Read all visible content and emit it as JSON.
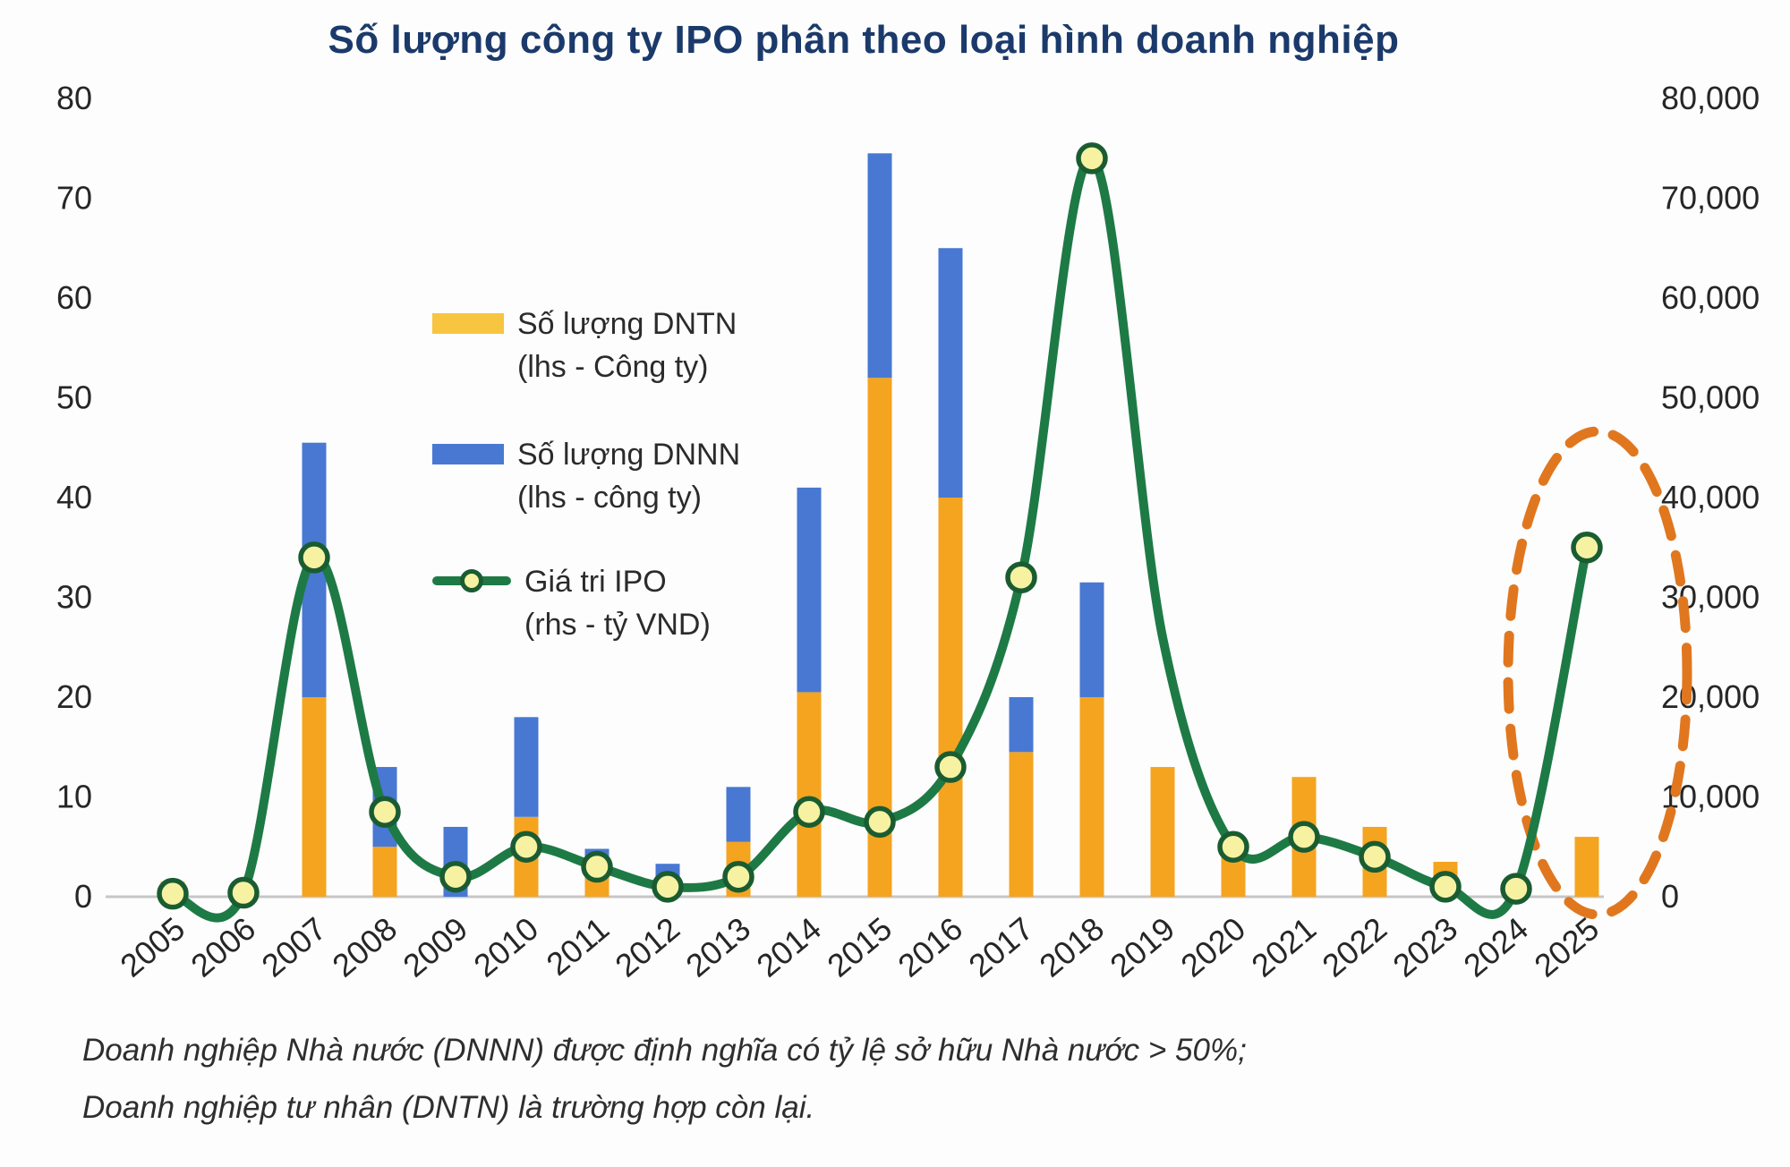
{
  "title": "Số lượng công ty IPO phân theo loại hình doanh nghiệp",
  "legend": {
    "items": [
      {
        "label": "Số lượng DNTN",
        "sublabel": "(lhs - Công ty)",
        "swatch_color": "#F7C53F",
        "marker": "bar"
      },
      {
        "label": "Số lượng DNNN",
        "sublabel": "(lhs - công ty)",
        "swatch_color": "#4878D2",
        "marker": "bar"
      },
      {
        "label": "Giá tri IPO",
        "sublabel": "(rhs - tỷ VND)",
        "swatch_color": "#1E7A45",
        "marker": "line"
      }
    ]
  },
  "footnote": {
    "line1": "Doanh nghiệp Nhà nước (DNNN) được định nghĩa có tỷ lệ sở hữu Nhà nước > 50%;",
    "line2": "Doanh nghiệp tư nhân (DNTN) là trường hợp còn lại."
  },
  "colors": {
    "title": "#1B3A6B",
    "bar_dntn": "#F5A41F",
    "bar_dnnn": "#4878D2",
    "line": "#1E7A45",
    "marker_fill": "#F6F2A2",
    "marker_stroke": "#1A5C31",
    "axis_text": "#262626",
    "baseline": "#C6C6C6",
    "ellipse": "#E0771F",
    "footnote_text": "#2E2E2E",
    "background": "#FDFDFD"
  },
  "chart_data": {
    "type": "combo",
    "title": "Số lượng công ty IPO phân theo loại hình doanh nghiệp",
    "categories": [
      "2005",
      "2006",
      "2007",
      "2008",
      "2009",
      "2010",
      "2011",
      "2012",
      "2013",
      "2014",
      "2015",
      "2016",
      "2017",
      "2018",
      "2019",
      "2020",
      "2021",
      "2022",
      "2023",
      "2024",
      "2025"
    ],
    "left_axis": {
      "max": 80,
      "ticks": [
        {
          "label": "0",
          "value": 0
        },
        {
          "label": "10",
          "value": 10
        },
        {
          "label": "20",
          "value": 20
        },
        {
          "label": "30",
          "value": 30
        },
        {
          "label": "40",
          "value": 40
        },
        {
          "label": "50",
          "value": 50
        },
        {
          "label": "60",
          "value": 60
        },
        {
          "label": "70",
          "value": 70
        },
        {
          "label": "80",
          "value": 80
        }
      ]
    },
    "right_axis": {
      "max": 80000,
      "ticks": [
        {
          "label": "0",
          "value": 0
        },
        {
          "label": "10,000",
          "value": 10000
        },
        {
          "label": "20,000",
          "value": 20000
        },
        {
          "label": "30,000",
          "value": 30000
        },
        {
          "label": "40,000",
          "value": 40000
        },
        {
          "label": "50,000",
          "value": 50000
        },
        {
          "label": "60,000",
          "value": 60000
        },
        {
          "label": "70,000",
          "value": 70000
        },
        {
          "label": "80,000",
          "value": 80000
        }
      ]
    },
    "series": [
      {
        "name": "Số lượng DNTN",
        "type": "bar",
        "stack": "companies",
        "axis": "left",
        "color": "#F5A41F",
        "values": [
          1.5,
          0,
          20,
          5,
          0,
          8,
          2,
          2,
          5.5,
          20.5,
          52,
          40,
          14.5,
          20,
          13,
          4.5,
          12,
          7,
          3.5,
          0,
          6
        ]
      },
      {
        "name": "Số lượng DNNN",
        "type": "bar",
        "stack": "companies",
        "axis": "left",
        "color": "#4878D2",
        "values": [
          0,
          0,
          25.5,
          8,
          7,
          10,
          2.8,
          1.3,
          5.5,
          20.5,
          22.5,
          25,
          5.5,
          11.5,
          0,
          0,
          0,
          0,
          0,
          0,
          0
        ]
      },
      {
        "name": "Giá tri IPO",
        "type": "line",
        "axis": "right",
        "color": "#1E7A45",
        "values": [
          300,
          400,
          34000,
          8500,
          2000,
          5000,
          3000,
          1000,
          2000,
          8500,
          7500,
          13000,
          32000,
          74000,
          26000,
          5000,
          6000,
          4000,
          1000,
          800,
          35000
        ],
        "marker_skip_years": [
          "2019"
        ]
      }
    ],
    "annotation": {
      "type": "dashed-ellipse",
      "color": "#E0771F",
      "highlighted_years": [
        "2024",
        "2025"
      ]
    },
    "grid": false,
    "legend_position": "upper-left-inside"
  }
}
